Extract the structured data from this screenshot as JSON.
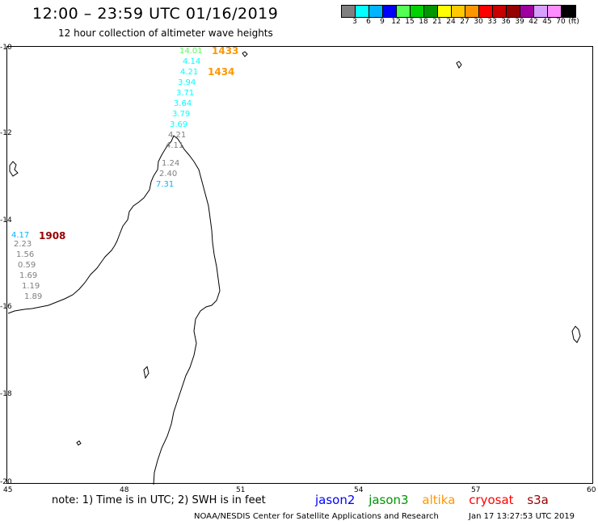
{
  "header": {
    "title": "12:00 – 23:59 UTC 01/16/2019",
    "subtitle": "12 hour collection of altimeter wave heights"
  },
  "legend": {
    "unit": "(ft)",
    "colors": [
      "#7f7f7f",
      "#00ffff",
      "#00b4ff",
      "#0000ff",
      "#54ff54",
      "#00d200",
      "#009600",
      "#ffff00",
      "#ffc800",
      "#ff9600",
      "#ff0000",
      "#c80000",
      "#960000",
      "#a000a0",
      "#d7a0ff",
      "#ff8cff",
      "#000000"
    ],
    "ticks": [
      "3",
      "6",
      "9",
      "12",
      "15",
      "18",
      "21",
      "24",
      "27",
      "30",
      "33",
      "36",
      "39",
      "42",
      "45",
      "70"
    ]
  },
  "map": {
    "lat_labels": [
      "-10",
      "-12",
      "-14",
      "-16",
      "-18",
      "-20"
    ],
    "lon_labels": [
      "45",
      "48",
      "51",
      "54",
      "57",
      "60"
    ],
    "tracks": [
      {
        "time": "1433",
        "time_color": "#ff9600",
        "values": [
          "14.01",
          "4.14",
          "4.21",
          "3.94",
          "3.71",
          "3.64",
          "3.79",
          "3.69",
          "4.21",
          "4.11",
          "1.24",
          "2.40",
          "7.31"
        ],
        "colors": [
          "#54ff54",
          "#00ffff",
          "#00ffff",
          "#00ffff",
          "#00ffff",
          "#00ffff",
          "#00ffff",
          "#00ffff",
          "#7f7f7f",
          "#7f7f7f",
          "#7f7f7f",
          "#7f7f7f",
          "#00b4ff"
        ]
      },
      {
        "time": "1434",
        "time_color": "#ff9600"
      },
      {
        "time": "1908",
        "time_color": "#960000",
        "values": [
          "4.17",
          "2.23",
          "1.56",
          "0.59",
          "1.69",
          "1.19",
          "1.89"
        ],
        "colors": [
          "#00b4ff",
          "#7f7f7f",
          "#7f7f7f",
          "#7f7f7f",
          "#7f7f7f",
          "#7f7f7f",
          "#7f7f7f"
        ]
      }
    ]
  },
  "footer": {
    "note": "note: 1) Time is in UTC; 2) SWH is in feet",
    "satellites": [
      {
        "name": "jason2",
        "color": "#0000ff"
      },
      {
        "name": "jason3",
        "color": "#009600"
      },
      {
        "name": "altika",
        "color": "#ff9600"
      },
      {
        "name": "cryosat",
        "color": "#ff0000"
      },
      {
        "name": "s3a",
        "color": "#960000"
      }
    ],
    "credit": "NOAA/NESDIS Center for Satellite Applications and Research",
    "timestamp": "Jan 17 13:27:53 UTC 2019"
  }
}
